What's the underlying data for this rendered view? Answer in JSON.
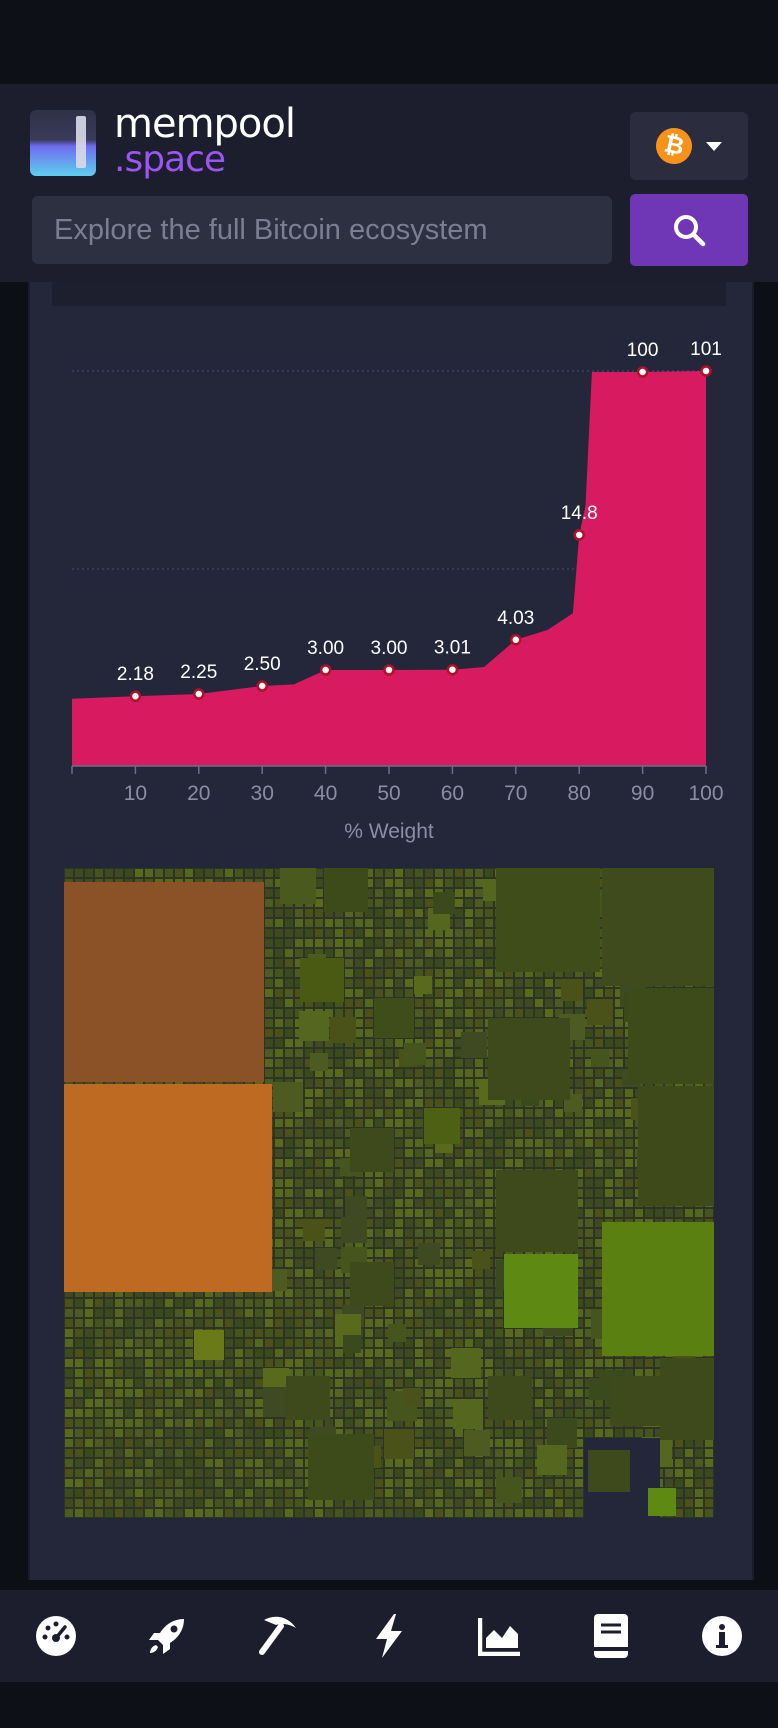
{
  "app": {
    "brand_top": "mempool",
    "brand_bottom": ".space",
    "network_icon": "bitcoin-icon",
    "search_placeholder": "Explore the full Bitcoin ecosystem"
  },
  "colors": {
    "accent": "#6f37b5",
    "fee_fill": "#d81b60",
    "background": "#24263a"
  },
  "chart_data": {
    "type": "area",
    "xlabel": "% Weight",
    "x_ticks": [
      "10",
      "20",
      "30",
      "40",
      "50",
      "60",
      "70",
      "80",
      "90",
      "100"
    ],
    "xlim": [
      0,
      100
    ],
    "ylim": [
      0,
      101
    ],
    "grid": true,
    "series": [
      {
        "x": [
          0,
          10,
          20,
          30,
          35,
          40,
          50,
          60,
          65,
          70,
          75,
          79,
          80,
          81,
          82,
          90,
          100
        ],
        "y": [
          2.1,
          2.18,
          2.25,
          2.5,
          2.55,
          3.0,
          3.0,
          3.01,
          3.1,
          4.03,
          5.5,
          8,
          14.8,
          30,
          100,
          100,
          101
        ]
      }
    ],
    "labeled_points": [
      {
        "x": 10,
        "label": "2.18"
      },
      {
        "x": 20,
        "label": "2.25"
      },
      {
        "x": 30,
        "label": "2.50"
      },
      {
        "x": 40,
        "label": "3.00"
      },
      {
        "x": 50,
        "label": "3.00"
      },
      {
        "x": 60,
        "label": "3.01"
      },
      {
        "x": 70,
        "label": "4.03"
      },
      {
        "x": 80,
        "label": "14.8"
      },
      {
        "x": 90,
        "label": "100"
      },
      {
        "x": 100,
        "label": "101"
      }
    ]
  },
  "nav": [
    {
      "name": "dashboard-icon"
    },
    {
      "name": "rocket-icon"
    },
    {
      "name": "mining-pickaxe-icon"
    },
    {
      "name": "lightning-icon"
    },
    {
      "name": "graphs-icon"
    },
    {
      "name": "docs-icon"
    },
    {
      "name": "about-icon"
    }
  ]
}
